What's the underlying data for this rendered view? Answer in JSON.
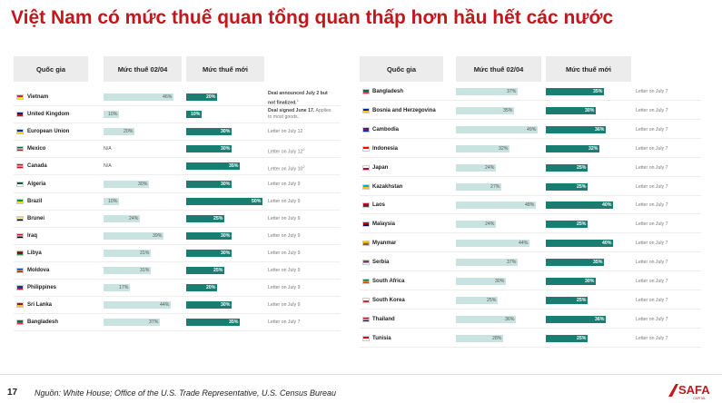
{
  "title": "Việt Nam có mức thuế quan tổng quan thấp hơn hầu hết các nước",
  "headers": {
    "country": "Quốc gia",
    "old_rate": "Mức thuế 02/04",
    "new_rate": "Mức thuế mới"
  },
  "left_table": [
    {
      "country": "Vietnam",
      "flag": "vietnam",
      "old": "46%",
      "old_value": 46,
      "new": "20%",
      "new_value": 20,
      "note": "Deal announced July 2 but\nnot finalized.",
      "note_sup": "1",
      "note_bold": true
    },
    {
      "country": "United Kingdom",
      "flag": "uk",
      "old": "10%",
      "old_value": 10,
      "new": "10%",
      "new_value": 10,
      "note": "Deal signed June 17. Applies\nto most goods.",
      "note_bold_part": "Deal signed June 17."
    },
    {
      "country": "European Union",
      "flag": "eu",
      "old": "20%",
      "old_value": 20,
      "new": "30%",
      "new_value": 30,
      "note": "Letter on July 12"
    },
    {
      "country": "Mexico",
      "flag": "mexico",
      "old": "N/A",
      "old_value": 0,
      "new": "30%",
      "new_value": 30,
      "note": "Letter on July 12",
      "note_sup": "2"
    },
    {
      "country": "Canada",
      "flag": "canada",
      "old": "N/A",
      "old_value": 0,
      "new": "35%",
      "new_value": 35,
      "note": "Letter on July 10",
      "note_sup": "2"
    },
    {
      "country": "Algeria",
      "flag": "algeria",
      "old": "30%",
      "old_value": 30,
      "new": "30%",
      "new_value": 30,
      "note": "Letter on July 9"
    },
    {
      "country": "Brazil",
      "flag": "brazil",
      "old": "10%",
      "old_value": 10,
      "new": "50%",
      "new_value": 50,
      "note": "Letter on July 9"
    },
    {
      "country": "Brunei",
      "flag": "brunei",
      "old": "24%",
      "old_value": 24,
      "new": "25%",
      "new_value": 25,
      "note": "Letter on July 9"
    },
    {
      "country": "Iraq",
      "flag": "iraq",
      "old": "39%",
      "old_value": 39,
      "new": "30%",
      "new_value": 30,
      "note": "Letter on July 9"
    },
    {
      "country": "Libya",
      "flag": "libya",
      "old": "31%",
      "old_value": 31,
      "new": "30%",
      "new_value": 30,
      "note": "Letter on July 9"
    },
    {
      "country": "Moldova",
      "flag": "moldova",
      "old": "31%",
      "old_value": 31,
      "new": "25%",
      "new_value": 25,
      "note": "Letter on July 9"
    },
    {
      "country": "Philippines",
      "flag": "philippines",
      "old": "17%",
      "old_value": 17,
      "new": "20%",
      "new_value": 20,
      "note": "Letter on July 9"
    },
    {
      "country": "Sri Lanka",
      "flag": "srilanka",
      "old": "44%",
      "old_value": 44,
      "new": "30%",
      "new_value": 30,
      "note": "Letter on July 9"
    },
    {
      "country": "Bangladesh",
      "flag": "bangladesh",
      "old": "37%",
      "old_value": 37,
      "new": "35%",
      "new_value": 35,
      "note": "Letter on July 7"
    }
  ],
  "right_table": [
    {
      "country": "Bangladesh",
      "flag": "bangladesh",
      "old": "37%",
      "old_value": 37,
      "new": "35%",
      "new_value": 35,
      "note": "Letter on July 7"
    },
    {
      "country": "Bosnia and Herzegovina",
      "flag": "bosnia",
      "old": "35%",
      "old_value": 35,
      "new": "30%",
      "new_value": 30,
      "note": "Letter on July 7"
    },
    {
      "country": "Cambodia",
      "flag": "cambodia",
      "old": "49%",
      "old_value": 49,
      "new": "36%",
      "new_value": 36,
      "note": "Letter on July 7"
    },
    {
      "country": "Indonesia",
      "flag": "indonesia",
      "old": "32%",
      "old_value": 32,
      "new": "32%",
      "new_value": 32,
      "note": "Letter on July 7"
    },
    {
      "country": "Japan",
      "flag": "japan",
      "old": "24%",
      "old_value": 24,
      "new": "25%",
      "new_value": 25,
      "note": "Letter on July 7"
    },
    {
      "country": "Kazakhstan",
      "flag": "kazakhstan",
      "old": "27%",
      "old_value": 27,
      "new": "25%",
      "new_value": 25,
      "note": "Letter on July 7"
    },
    {
      "country": "Laos",
      "flag": "laos",
      "old": "48%",
      "old_value": 48,
      "new": "40%",
      "new_value": 40,
      "note": "Letter on July 7"
    },
    {
      "country": "Malaysia",
      "flag": "malaysia",
      "old": "24%",
      "old_value": 24,
      "new": "25%",
      "new_value": 25,
      "note": "Letter on July 7"
    },
    {
      "country": "Myanmar",
      "flag": "myanmar",
      "old": "44%",
      "old_value": 44,
      "new": "40%",
      "new_value": 40,
      "note": "Letter on July 7"
    },
    {
      "country": "Serbia",
      "flag": "serbia",
      "old": "37%",
      "old_value": 37,
      "new": "35%",
      "new_value": 35,
      "note": "Letter on July 7"
    },
    {
      "country": "South Africa",
      "flag": "southafrica",
      "old": "30%",
      "old_value": 30,
      "new": "30%",
      "new_value": 30,
      "note": "Letter on July 7"
    },
    {
      "country": "South Korea",
      "flag": "southkorea",
      "old": "25%",
      "old_value": 25,
      "new": "25%",
      "new_value": 25,
      "note": "Letter on July 7"
    },
    {
      "country": "Thailand",
      "flag": "thailand",
      "old": "36%",
      "old_value": 36,
      "new": "36%",
      "new_value": 36,
      "note": "Letter on July 7"
    },
    {
      "country": "Tunisia",
      "flag": "tunisia",
      "old": "28%",
      "old_value": 28,
      "new": "25%",
      "new_value": 25,
      "note": "Letter on July 7"
    }
  ],
  "footer": {
    "page_number": "17",
    "source": "Nguồn: White House; Office of the U.S. Trade Representative, U.S. Census Bureau",
    "logo_text": "SAFA",
    "logo_subtext": "CAPITAL"
  },
  "colors": {
    "title": "#c4161c",
    "old_bar": "#c9e4e0",
    "new_bar": "#1a7d72",
    "header_bg": "#ececec"
  },
  "flag_colors": {
    "vietnam": [
      "#da251d",
      "#ffff00"
    ],
    "uk": [
      "#012169",
      "#c8102e"
    ],
    "eu": [
      "#003399",
      "#ffcc00"
    ],
    "mexico": [
      "#006847",
      "#ffffff",
      "#ce1126"
    ],
    "canada": [
      "#d80621",
      "#ffffff",
      "#d80621"
    ],
    "algeria": [
      "#006233",
      "#ffffff"
    ],
    "brazil": [
      "#009c3b",
      "#ffdf00"
    ],
    "brunei": [
      "#f7e017",
      "#ffffff",
      "#000000"
    ],
    "iraq": [
      "#ce1126",
      "#ffffff",
      "#000000"
    ],
    "libya": [
      "#e70013",
      "#000000",
      "#239e46"
    ],
    "moldova": [
      "#0046ae",
      "#ffd200",
      "#cc092f"
    ],
    "philippines": [
      "#0038a8",
      "#ce1126"
    ],
    "srilanka": [
      "#8d153a",
      "#ffbe29"
    ],
    "bangladesh": [
      "#006a4e",
      "#f42a41"
    ],
    "bosnia": [
      "#002395",
      "#fecb00"
    ],
    "cambodia": [
      "#032ea1",
      "#e00025",
      "#032ea1"
    ],
    "indonesia": [
      "#ff0000",
      "#ffffff"
    ],
    "japan": [
      "#ffffff",
      "#bc002d"
    ],
    "kazakhstan": [
      "#00afca",
      "#fec50c"
    ],
    "laos": [
      "#ce1126",
      "#002868",
      "#ce1126"
    ],
    "malaysia": [
      "#cc0001",
      "#010066"
    ],
    "myanmar": [
      "#fecb00",
      "#34b233",
      "#ea2839"
    ],
    "serbia": [
      "#c6363c",
      "#0c4076",
      "#ffffff"
    ],
    "southafrica": [
      "#007a4d",
      "#ffb612",
      "#de3831"
    ],
    "southkorea": [
      "#ffffff",
      "#cd2e3a"
    ],
    "thailand": [
      "#a51931",
      "#ffffff",
      "#2d2a4a"
    ],
    "tunisia": [
      "#e70013",
      "#ffffff"
    ]
  }
}
